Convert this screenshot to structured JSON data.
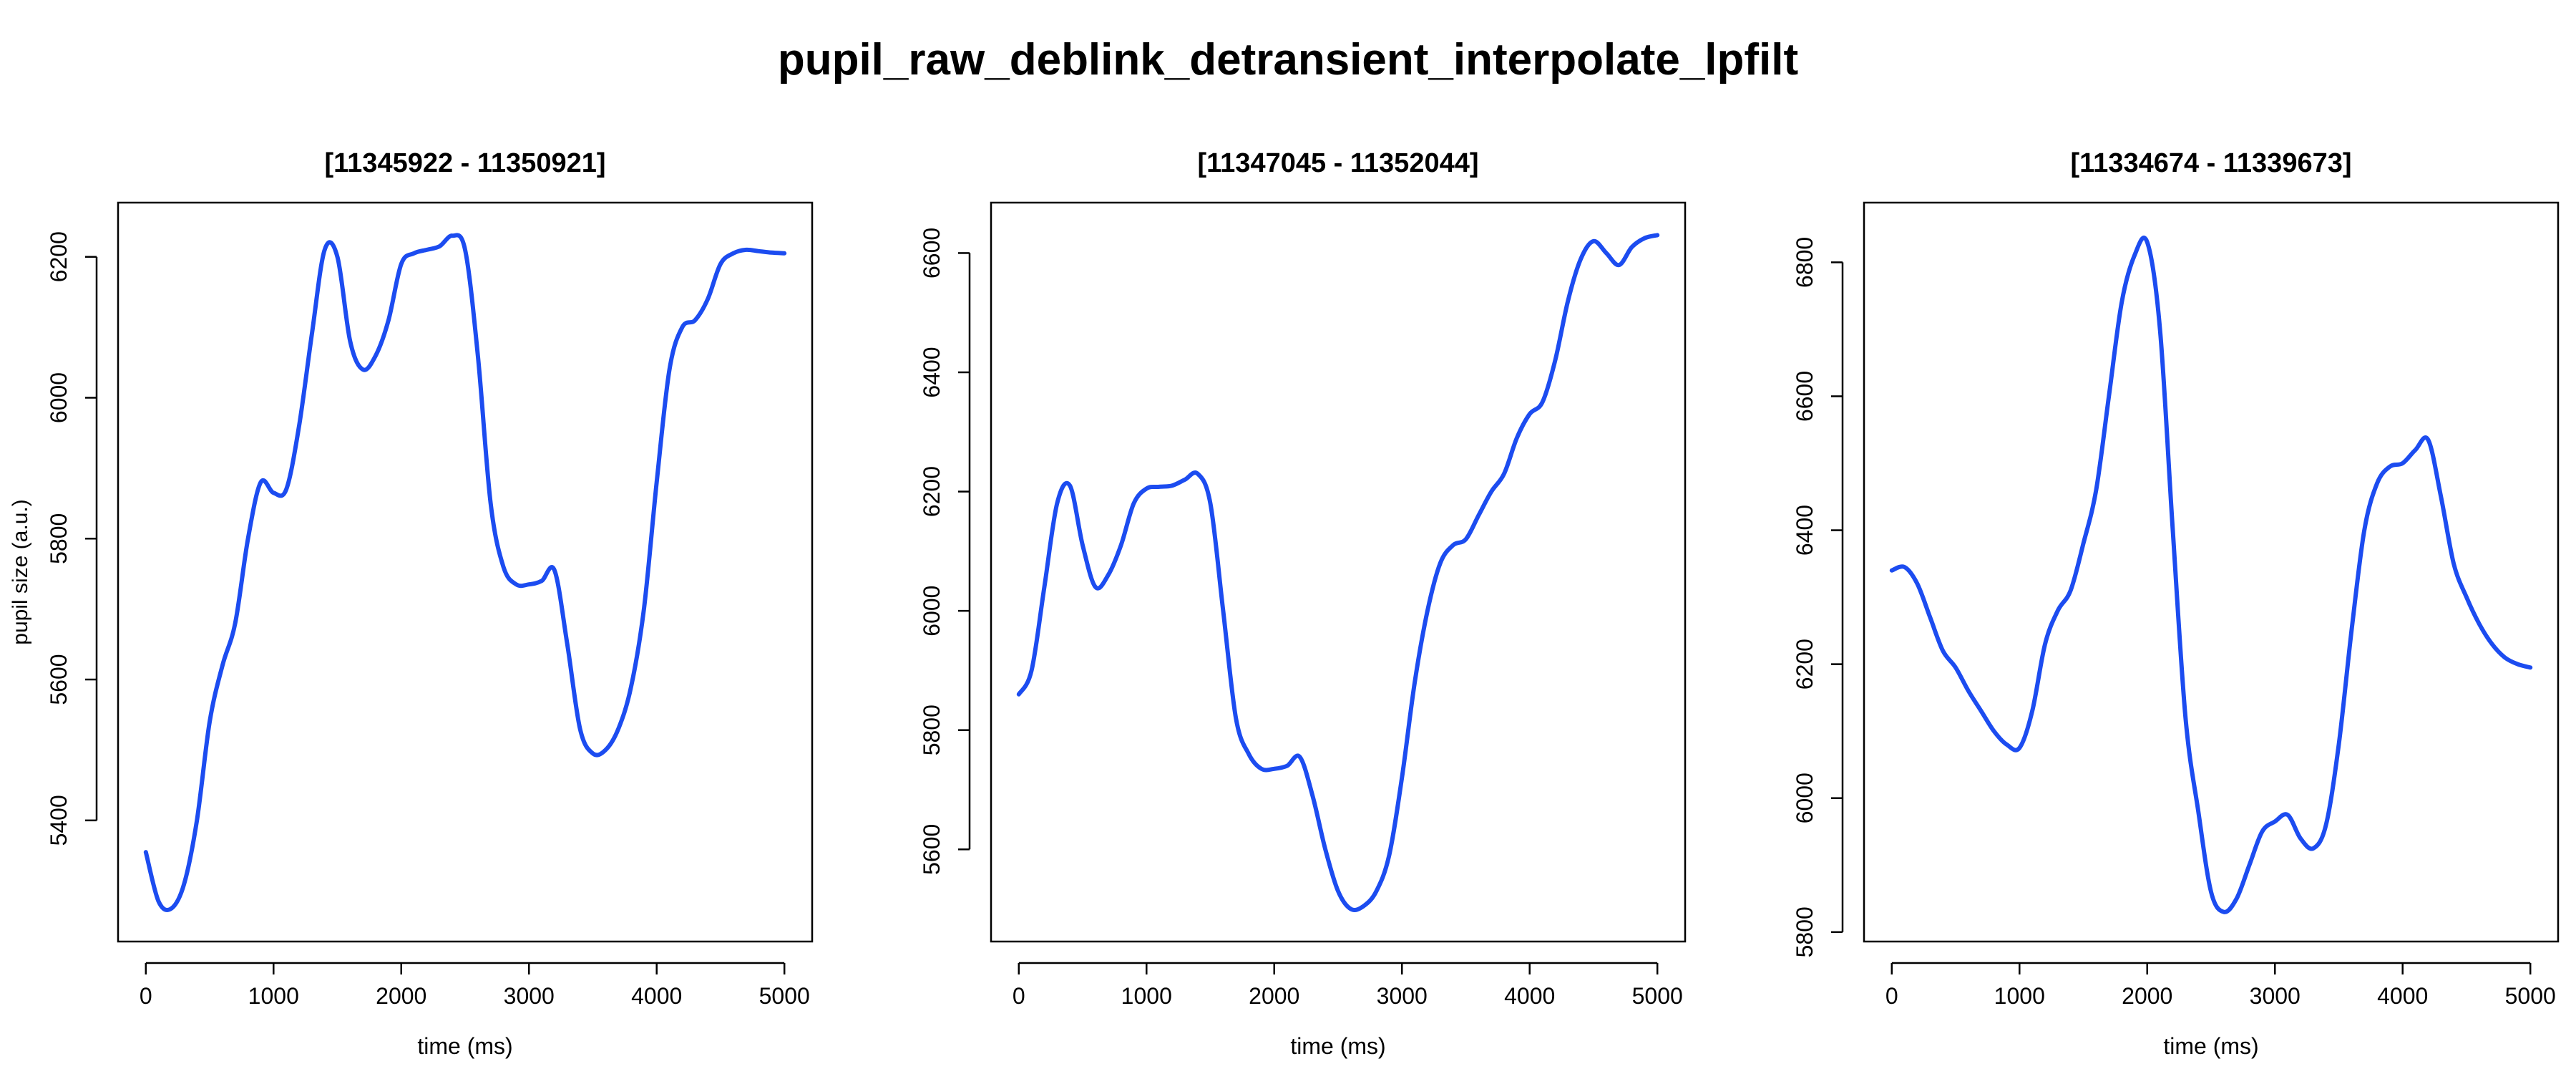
{
  "page": {
    "title": "pupil_raw_deblink_detransient_interpolate_lpfilt"
  },
  "colors": {
    "line": "#1c4cf0",
    "axis": "#000000",
    "background": "#ffffff"
  },
  "chart_data": [
    {
      "type": "line",
      "title": "[11345922 - 11350921]",
      "xlabel": "time (ms)",
      "ylabel": "pupil size (a.u.)",
      "xlim": [
        0,
        5000
      ],
      "ylim": [
        5270,
        6235
      ],
      "xticks": [
        0,
        1000,
        2000,
        3000,
        4000,
        5000
      ],
      "yticks": [
        5400,
        5600,
        5800,
        6000,
        6200
      ],
      "grid": false,
      "series": [
        {
          "name": "pupil",
          "x": [
            0,
            100,
            200,
            300,
            400,
            500,
            600,
            700,
            800,
            900,
            1000,
            1100,
            1200,
            1300,
            1400,
            1500,
            1600,
            1700,
            1800,
            1900,
            2000,
            2100,
            2200,
            2300,
            2400,
            2500,
            2600,
            2700,
            2800,
            2900,
            3000,
            3100,
            3200,
            3300,
            3400,
            3500,
            3600,
            3700,
            3800,
            3900,
            4000,
            4100,
            4200,
            4300,
            4400,
            4500,
            4600,
            4700,
            4800,
            4900,
            5000
          ],
          "y": [
            5355,
            5285,
            5275,
            5310,
            5400,
            5540,
            5620,
            5680,
            5800,
            5880,
            5865,
            5870,
            5960,
            6090,
            6210,
            6200,
            6080,
            6040,
            6060,
            6110,
            6190,
            6205,
            6210,
            6215,
            6230,
            6210,
            6060,
            5850,
            5760,
            5735,
            5735,
            5740,
            5755,
            5650,
            5530,
            5495,
            5500,
            5530,
            5590,
            5700,
            5880,
            6040,
            6100,
            6110,
            6140,
            6190,
            6205,
            6210,
            6208,
            6206,
            6205
          ]
        }
      ]
    },
    {
      "type": "line",
      "title": "[11347045 - 11352044]",
      "xlabel": "time (ms)",
      "ylabel": "",
      "xlim": [
        0,
        5000
      ],
      "ylim": [
        5495,
        6635
      ],
      "xticks": [
        0,
        1000,
        2000,
        3000,
        4000,
        5000
      ],
      "yticks": [
        5600,
        5800,
        6000,
        6200,
        6400,
        6600
      ],
      "grid": false,
      "series": [
        {
          "name": "pupil",
          "x": [
            0,
            100,
            200,
            300,
            400,
            500,
            600,
            700,
            800,
            900,
            1000,
            1100,
            1200,
            1300,
            1400,
            1500,
            1600,
            1700,
            1800,
            1900,
            2000,
            2100,
            2200,
            2300,
            2400,
            2500,
            2600,
            2700,
            2800,
            2900,
            3000,
            3100,
            3200,
            3300,
            3400,
            3500,
            3600,
            3700,
            3800,
            3900,
            4000,
            4100,
            4200,
            4300,
            4400,
            4500,
            4600,
            4700,
            4800,
            4900,
            5000
          ],
          "y": [
            5860,
            5900,
            6040,
            6180,
            6210,
            6110,
            6040,
            6060,
            6110,
            6180,
            6205,
            6208,
            6210,
            6220,
            6230,
            6180,
            6000,
            5820,
            5760,
            5735,
            5735,
            5740,
            5755,
            5690,
            5600,
            5530,
            5500,
            5505,
            5530,
            5590,
            5720,
            5880,
            6000,
            6080,
            6110,
            6120,
            6160,
            6200,
            6230,
            6290,
            6330,
            6350,
            6420,
            6520,
            6590,
            6620,
            6600,
            6580,
            6610,
            6625,
            6630
          ]
        }
      ]
    },
    {
      "type": "line",
      "title": "[11334674 - 11339673]",
      "xlabel": "time (ms)",
      "ylabel": "",
      "xlim": [
        0,
        5000
      ],
      "ylim": [
        5830,
        6845
      ],
      "xticks": [
        0,
        1000,
        2000,
        3000,
        4000,
        5000
      ],
      "yticks": [
        5800,
        6000,
        6200,
        6400,
        6600,
        6800
      ],
      "grid": false,
      "series": [
        {
          "name": "pupil",
          "x": [
            0,
            100,
            200,
            300,
            400,
            500,
            600,
            700,
            800,
            900,
            1000,
            1100,
            1200,
            1300,
            1400,
            1500,
            1600,
            1700,
            1800,
            1900,
            2000,
            2100,
            2200,
            2300,
            2400,
            2500,
            2600,
            2700,
            2800,
            2900,
            3000,
            3100,
            3200,
            3300,
            3400,
            3500,
            3600,
            3700,
            3800,
            3900,
            4000,
            4100,
            4200,
            4300,
            4400,
            4500,
            4600,
            4700,
            4800,
            4900,
            5000
          ],
          "y": [
            6340,
            6345,
            6320,
            6270,
            6220,
            6195,
            6160,
            6130,
            6100,
            6080,
            6075,
            6130,
            6230,
            6280,
            6310,
            6380,
            6460,
            6600,
            6740,
            6810,
            6830,
            6700,
            6400,
            6120,
            5980,
            5860,
            5830,
            5850,
            5900,
            5950,
            5965,
            5975,
            5940,
            5925,
            5960,
            6080,
            6250,
            6400,
            6470,
            6495,
            6500,
            6520,
            6535,
            6450,
            6350,
            6300,
            6260,
            6230,
            6210,
            6200,
            6195
          ]
        }
      ]
    }
  ]
}
